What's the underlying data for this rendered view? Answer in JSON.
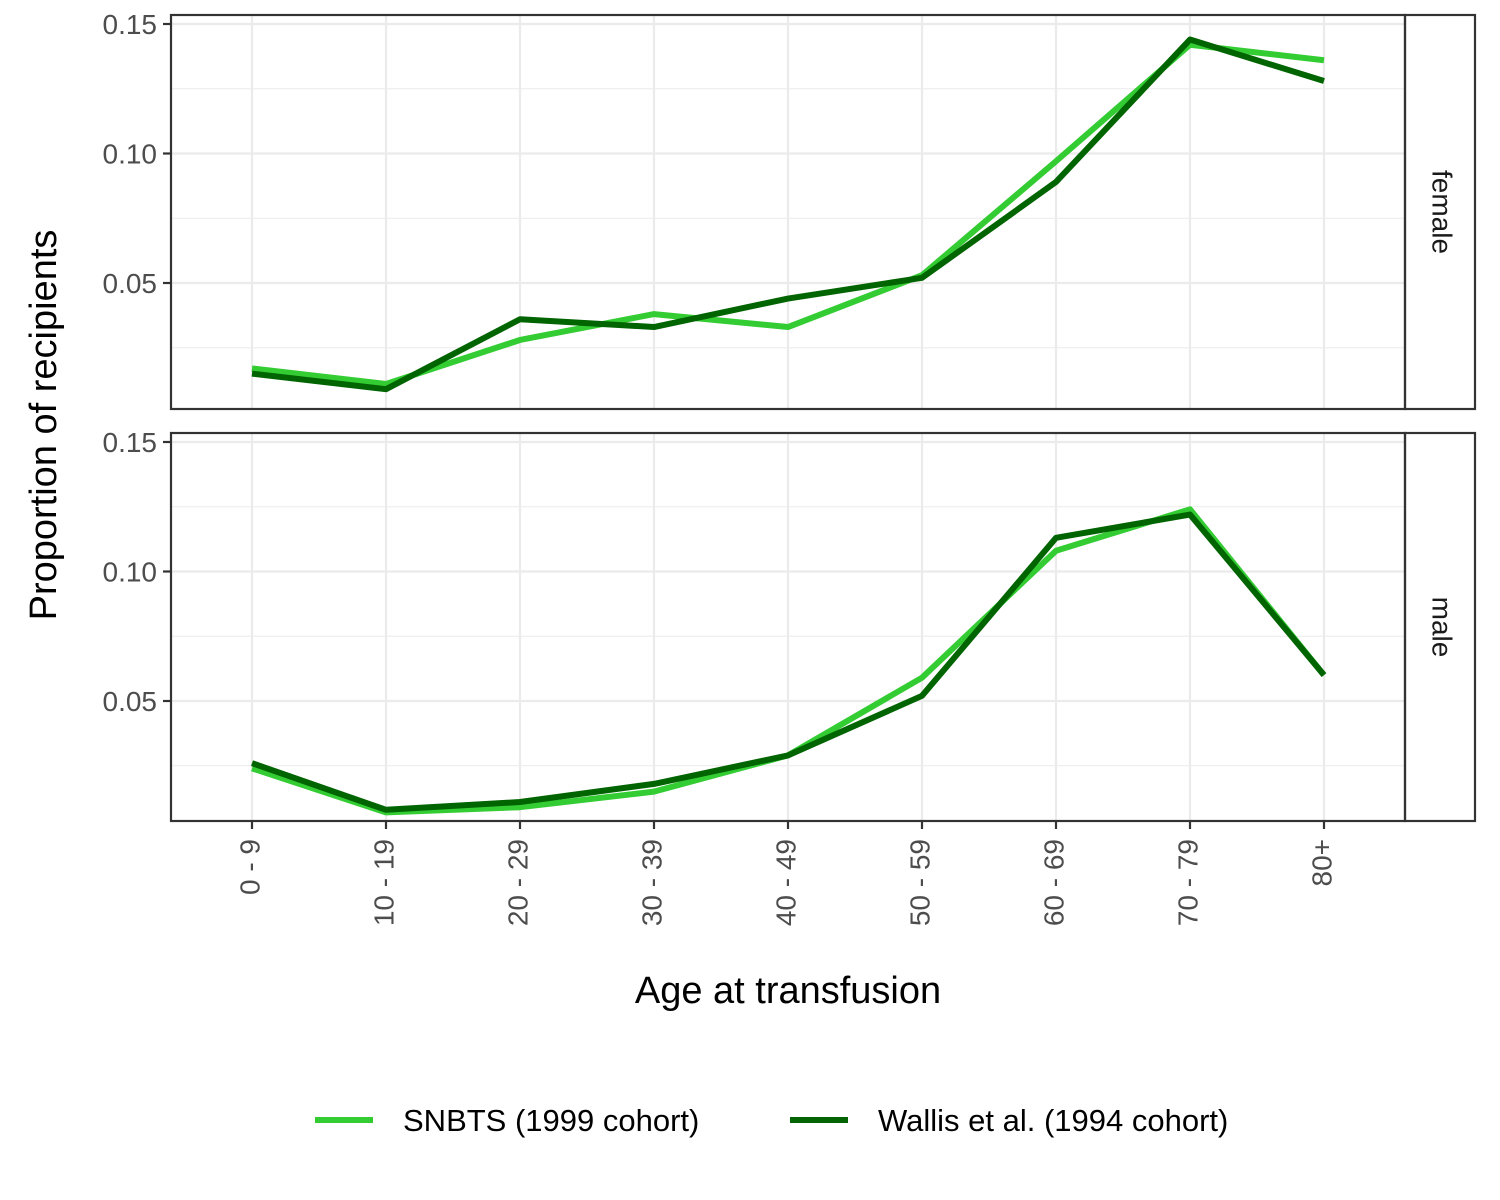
{
  "chart_data": {
    "type": "line",
    "xlabel": "Age at transfusion",
    "ylabel": "Proportion of recipients",
    "categories": [
      "0 - 9",
      "10 - 19",
      "20 - 29",
      "30 - 39",
      "40 - 49",
      "50 - 59",
      "60 - 69",
      "70 - 79",
      "80+"
    ],
    "ylim": [
      0.0,
      0.15
    ],
    "yticks": [
      0.05,
      0.1,
      0.15
    ],
    "ytick_labels": [
      "0.05",
      "0.10",
      "0.15"
    ],
    "grid": true,
    "legend_position": "bottom",
    "panels": [
      {
        "label": "female",
        "series": [
          {
            "name": "SNBTS (1999 cohort)",
            "color": "#33cc33",
            "values": [
              0.017,
              0.011,
              0.028,
              0.038,
              0.033,
              0.053,
              0.097,
              0.142,
              0.136
            ]
          },
          {
            "name": "Wallis et al. (1994 cohort)",
            "color": "#006400",
            "values": [
              0.015,
              0.009,
              0.036,
              0.033,
              0.044,
              0.052,
              0.089,
              0.144,
              0.128
            ]
          }
        ]
      },
      {
        "label": "male",
        "series": [
          {
            "name": "SNBTS (1999 cohort)",
            "color": "#33cc33",
            "values": [
              0.024,
              0.007,
              0.009,
              0.015,
              0.029,
              0.059,
              0.108,
              0.124,
              0.06
            ]
          },
          {
            "name": "Wallis et al. (1994 cohort)",
            "color": "#006400",
            "values": [
              0.026,
              0.008,
              0.011,
              0.018,
              0.029,
              0.052,
              0.113,
              0.122,
              0.06
            ]
          }
        ]
      }
    ]
  },
  "legend": {
    "items": [
      {
        "label": "SNBTS (1999 cohort)",
        "color": "#33cc33"
      },
      {
        "label": "Wallis et al. (1994 cohort)",
        "color": "#006400"
      }
    ]
  }
}
